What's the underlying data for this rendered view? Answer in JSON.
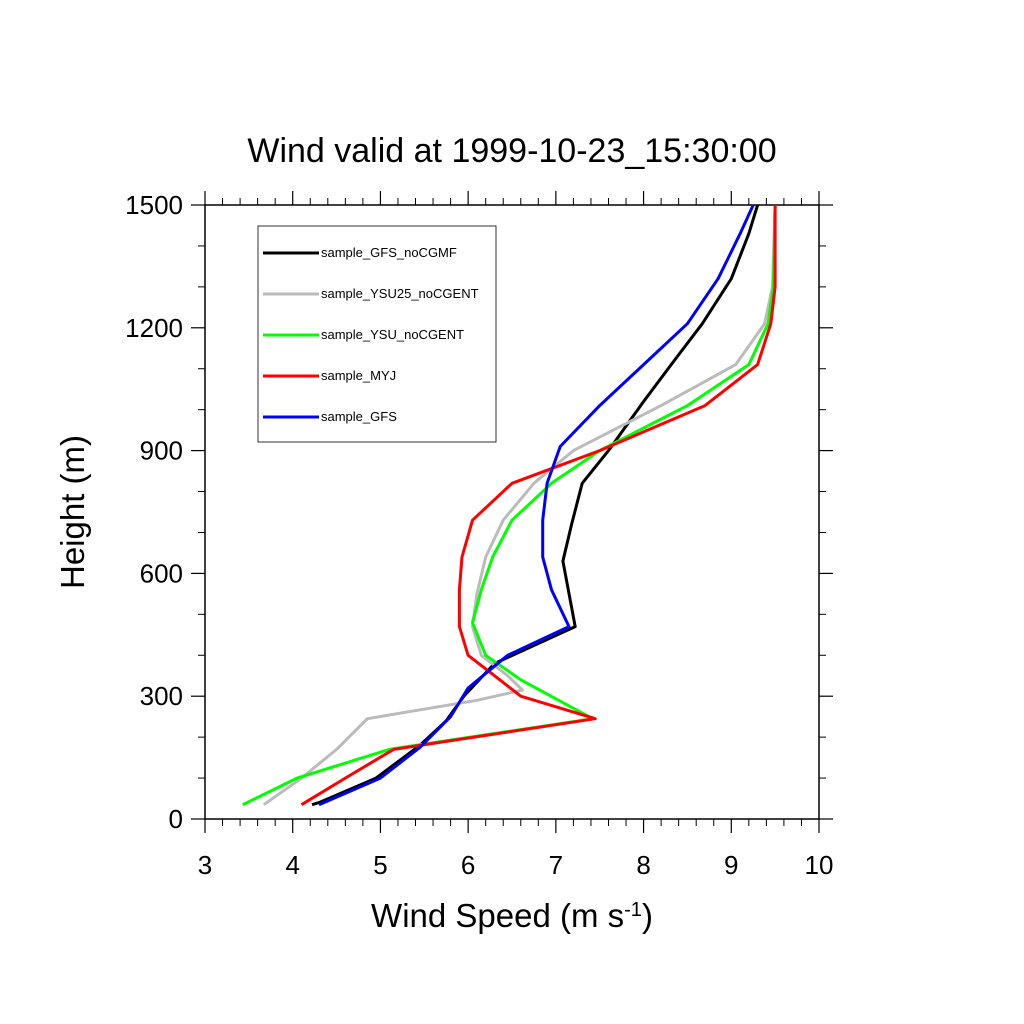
{
  "chart_data": {
    "type": "line",
    "title": "Wind valid at 1999-10-23_15:30:00",
    "xlabel": "Wind Speed (m s",
    "xlabel_sup": "-1",
    "xlabel_tail": ")",
    "ylabel": "Height (m)",
    "xlim": [
      3,
      10
    ],
    "ylim": [
      0,
      1500
    ],
    "x_ticks": [
      3,
      4,
      5,
      6,
      7,
      8,
      9,
      10
    ],
    "y_ticks": [
      0,
      300,
      600,
      900,
      1200,
      1500
    ],
    "grid": false,
    "legend_position": "top-left",
    "series": [
      {
        "name": "sample_GFS_noCGMF",
        "color": "#000000",
        "points": [
          [
            4.22,
            35
          ],
          [
            4.3,
            40
          ],
          [
            4.95,
            100
          ],
          [
            5.45,
            180
          ],
          [
            5.75,
            240
          ],
          [
            5.95,
            300
          ],
          [
            6.3,
            380
          ],
          [
            7.22,
            470
          ],
          [
            7.08,
            630
          ],
          [
            7.18,
            720
          ],
          [
            7.3,
            820
          ],
          [
            7.6,
            900
          ],
          [
            8.0,
            1020
          ],
          [
            8.35,
            1120
          ],
          [
            8.67,
            1210
          ],
          [
            9.0,
            1320
          ],
          [
            9.2,
            1430
          ],
          [
            9.3,
            1500
          ]
        ]
      },
      {
        "name": "sample_YSU25_noCGENT",
        "color": "#bbbbbb",
        "points": [
          [
            3.67,
            35
          ],
          [
            4.1,
            100
          ],
          [
            4.5,
            170
          ],
          [
            4.85,
            245
          ],
          [
            6.1,
            290
          ],
          [
            6.62,
            315
          ],
          [
            6.45,
            350
          ],
          [
            6.15,
            400
          ],
          [
            6.05,
            470
          ],
          [
            6.1,
            550
          ],
          [
            6.2,
            640
          ],
          [
            6.4,
            730
          ],
          [
            6.75,
            820
          ],
          [
            7.2,
            900
          ],
          [
            8.2,
            1010
          ],
          [
            9.05,
            1110
          ],
          [
            9.38,
            1210
          ],
          [
            9.47,
            1300
          ],
          [
            9.5,
            1500
          ]
        ]
      },
      {
        "name": "sample_YSU_noCGENT",
        "color": "#00ff00",
        "points": [
          [
            3.43,
            35
          ],
          [
            4.05,
            100
          ],
          [
            5.1,
            170
          ],
          [
            7.42,
            245
          ],
          [
            6.6,
            340
          ],
          [
            6.2,
            400
          ],
          [
            6.05,
            480
          ],
          [
            6.15,
            560
          ],
          [
            6.28,
            640
          ],
          [
            6.5,
            730
          ],
          [
            6.95,
            820
          ],
          [
            7.5,
            900
          ],
          [
            8.5,
            1010
          ],
          [
            9.2,
            1110
          ],
          [
            9.42,
            1210
          ],
          [
            9.48,
            1300
          ],
          [
            9.5,
            1500
          ]
        ]
      },
      {
        "name": "sample_MYJ",
        "color": "#ff0000",
        "points": [
          [
            4.1,
            35
          ],
          [
            4.6,
            100
          ],
          [
            5.15,
            170
          ],
          [
            7.45,
            245
          ],
          [
            6.6,
            300
          ],
          [
            6.3,
            350
          ],
          [
            6.0,
            400
          ],
          [
            5.9,
            470
          ],
          [
            5.9,
            560
          ],
          [
            5.93,
            640
          ],
          [
            6.05,
            730
          ],
          [
            6.5,
            820
          ],
          [
            7.5,
            900
          ],
          [
            8.7,
            1010
          ],
          [
            9.3,
            1110
          ],
          [
            9.45,
            1210
          ],
          [
            9.5,
            1300
          ],
          [
            9.5,
            1500
          ]
        ]
      },
      {
        "name": "sample_GFS",
        "color": "#0000ff",
        "points": [
          [
            4.3,
            35
          ],
          [
            5.0,
            100
          ],
          [
            5.45,
            175
          ],
          [
            5.8,
            250
          ],
          [
            6.0,
            320
          ],
          [
            6.45,
            400
          ],
          [
            7.15,
            470
          ],
          [
            6.95,
            560
          ],
          [
            6.85,
            640
          ],
          [
            6.85,
            730
          ],
          [
            6.9,
            820
          ],
          [
            7.05,
            910
          ],
          [
            7.5,
            1010
          ],
          [
            8.05,
            1120
          ],
          [
            8.5,
            1210
          ],
          [
            8.85,
            1320
          ],
          [
            9.1,
            1430
          ],
          [
            9.25,
            1500
          ]
        ]
      }
    ]
  }
}
